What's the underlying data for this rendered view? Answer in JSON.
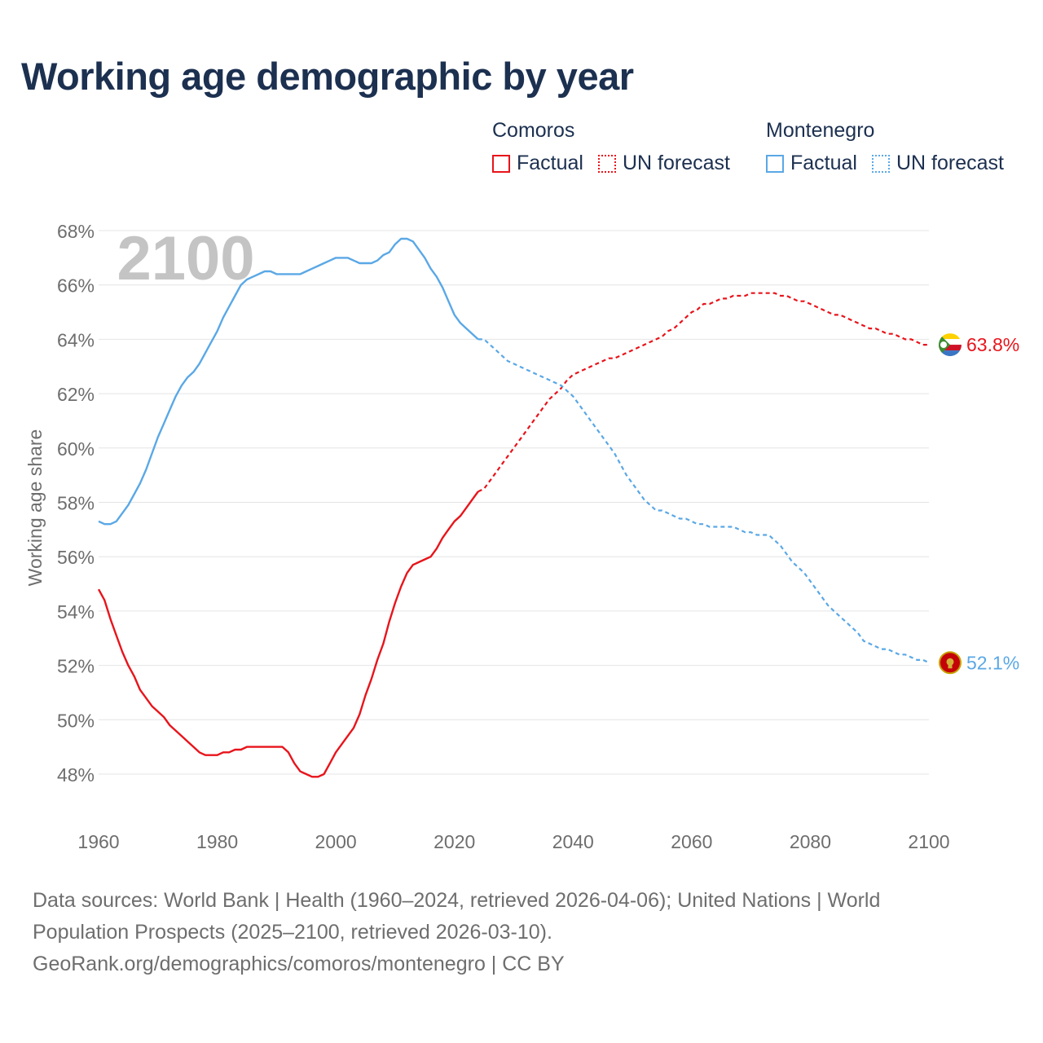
{
  "title": "Working age demographic by year",
  "legend": {
    "groups": [
      {
        "name": "Comoros",
        "color": "#e8141b",
        "factual_label": "Factual",
        "forecast_label": "UN forecast"
      },
      {
        "name": "Montenegro",
        "color": "#5aa8e6",
        "factual_label": "Factual",
        "forecast_label": "UN forecast"
      }
    ]
  },
  "footer": {
    "line1": "Data sources: World Bank | Health (1960–2024, retrieved 2026-04-06); United Nations | World",
    "line2": "Population Prospects (2025–2100, retrieved 2026-03-10).",
    "line3": "GeoRank.org/demographics/comoros/montenegro | CC BY"
  },
  "chart_data": {
    "type": "line",
    "title": "Working age demographic by year",
    "xlabel": "",
    "ylabel": "Working age share",
    "xlim": [
      1960,
      2100
    ],
    "ylim": [
      47,
      68
    ],
    "grid": true,
    "year_watermark": "2100",
    "x_ticks": [
      1960,
      1980,
      2000,
      2020,
      2040,
      2060,
      2080,
      2100
    ],
    "y_ticks": [
      48,
      50,
      52,
      54,
      56,
      58,
      60,
      62,
      64,
      66,
      68
    ],
    "y_tick_suffix": "%",
    "factual_until": 2024,
    "series": [
      {
        "name": "Comoros",
        "color": "#e8141b",
        "end_label": "63.8%",
        "flag": "comoros-flag-icon",
        "points": [
          [
            1960,
            54.8
          ],
          [
            1961,
            54.4
          ],
          [
            1962,
            53.7
          ],
          [
            1963,
            53.1
          ],
          [
            1964,
            52.5
          ],
          [
            1965,
            52.0
          ],
          [
            1966,
            51.6
          ],
          [
            1967,
            51.1
          ],
          [
            1968,
            50.8
          ],
          [
            1969,
            50.5
          ],
          [
            1970,
            50.3
          ],
          [
            1971,
            50.1
          ],
          [
            1972,
            49.8
          ],
          [
            1973,
            49.6
          ],
          [
            1974,
            49.4
          ],
          [
            1975,
            49.2
          ],
          [
            1976,
            49.0
          ],
          [
            1977,
            48.8
          ],
          [
            1978,
            48.7
          ],
          [
            1979,
            48.7
          ],
          [
            1980,
            48.7
          ],
          [
            1981,
            48.8
          ],
          [
            1982,
            48.8
          ],
          [
            1983,
            48.9
          ],
          [
            1984,
            48.9
          ],
          [
            1985,
            49.0
          ],
          [
            1986,
            49.0
          ],
          [
            1987,
            49.0
          ],
          [
            1988,
            49.0
          ],
          [
            1989,
            49.0
          ],
          [
            1990,
            49.0
          ],
          [
            1991,
            49.0
          ],
          [
            1992,
            48.8
          ],
          [
            1993,
            48.4
          ],
          [
            1994,
            48.1
          ],
          [
            1995,
            48.0
          ],
          [
            1996,
            47.9
          ],
          [
            1997,
            47.9
          ],
          [
            1998,
            48.0
          ],
          [
            1999,
            48.4
          ],
          [
            2000,
            48.8
          ],
          [
            2001,
            49.1
          ],
          [
            2002,
            49.4
          ],
          [
            2003,
            49.7
          ],
          [
            2004,
            50.2
          ],
          [
            2005,
            50.9
          ],
          [
            2006,
            51.5
          ],
          [
            2007,
            52.2
          ],
          [
            2008,
            52.8
          ],
          [
            2009,
            53.6
          ],
          [
            2010,
            54.3
          ],
          [
            2011,
            54.9
          ],
          [
            2012,
            55.4
          ],
          [
            2013,
            55.7
          ],
          [
            2014,
            55.8
          ],
          [
            2015,
            55.9
          ],
          [
            2016,
            56.0
          ],
          [
            2017,
            56.3
          ],
          [
            2018,
            56.7
          ],
          [
            2019,
            57.0
          ],
          [
            2020,
            57.3
          ],
          [
            2021,
            57.5
          ],
          [
            2022,
            57.8
          ],
          [
            2023,
            58.1
          ],
          [
            2024,
            58.4
          ],
          [
            2025,
            58.5
          ],
          [
            2026,
            58.8
          ],
          [
            2027,
            59.1
          ],
          [
            2028,
            59.4
          ],
          [
            2029,
            59.7
          ],
          [
            2030,
            60.0
          ],
          [
            2031,
            60.3
          ],
          [
            2032,
            60.6
          ],
          [
            2033,
            60.9
          ],
          [
            2034,
            61.2
          ],
          [
            2035,
            61.5
          ],
          [
            2036,
            61.8
          ],
          [
            2037,
            62.0
          ],
          [
            2038,
            62.2
          ],
          [
            2039,
            62.5
          ],
          [
            2040,
            62.7
          ],
          [
            2041,
            62.8
          ],
          [
            2042,
            62.9
          ],
          [
            2043,
            63.0
          ],
          [
            2044,
            63.1
          ],
          [
            2045,
            63.2
          ],
          [
            2046,
            63.3
          ],
          [
            2047,
            63.3
          ],
          [
            2048,
            63.4
          ],
          [
            2049,
            63.5
          ],
          [
            2050,
            63.6
          ],
          [
            2051,
            63.7
          ],
          [
            2052,
            63.8
          ],
          [
            2053,
            63.9
          ],
          [
            2054,
            64.0
          ],
          [
            2055,
            64.1
          ],
          [
            2056,
            64.3
          ],
          [
            2057,
            64.4
          ],
          [
            2058,
            64.6
          ],
          [
            2059,
            64.8
          ],
          [
            2060,
            65.0
          ],
          [
            2061,
            65.1
          ],
          [
            2062,
            65.3
          ],
          [
            2063,
            65.3
          ],
          [
            2064,
            65.4
          ],
          [
            2065,
            65.5
          ],
          [
            2066,
            65.5
          ],
          [
            2067,
            65.6
          ],
          [
            2068,
            65.6
          ],
          [
            2069,
            65.6
          ],
          [
            2070,
            65.7
          ],
          [
            2071,
            65.7
          ],
          [
            2072,
            65.7
          ],
          [
            2073,
            65.7
          ],
          [
            2074,
            65.7
          ],
          [
            2075,
            65.6
          ],
          [
            2076,
            65.6
          ],
          [
            2077,
            65.5
          ],
          [
            2078,
            65.4
          ],
          [
            2079,
            65.4
          ],
          [
            2080,
            65.3
          ],
          [
            2081,
            65.2
          ],
          [
            2082,
            65.1
          ],
          [
            2083,
            65.0
          ],
          [
            2084,
            64.9
          ],
          [
            2085,
            64.9
          ],
          [
            2086,
            64.8
          ],
          [
            2087,
            64.7
          ],
          [
            2088,
            64.6
          ],
          [
            2089,
            64.5
          ],
          [
            2090,
            64.4
          ],
          [
            2091,
            64.4
          ],
          [
            2092,
            64.3
          ],
          [
            2093,
            64.2
          ],
          [
            2094,
            64.2
          ],
          [
            2095,
            64.1
          ],
          [
            2096,
            64.0
          ],
          [
            2097,
            64.0
          ],
          [
            2098,
            63.9
          ],
          [
            2099,
            63.8
          ],
          [
            2100,
            63.8
          ]
        ]
      },
      {
        "name": "Montenegro",
        "color": "#5aa8e6",
        "end_label": "52.1%",
        "flag": "montenegro-flag-icon",
        "points": [
          [
            1960,
            57.3
          ],
          [
            1961,
            57.2
          ],
          [
            1962,
            57.2
          ],
          [
            1963,
            57.3
          ],
          [
            1964,
            57.6
          ],
          [
            1965,
            57.9
          ],
          [
            1966,
            58.3
          ],
          [
            1967,
            58.7
          ],
          [
            1968,
            59.2
          ],
          [
            1969,
            59.8
          ],
          [
            1970,
            60.4
          ],
          [
            1971,
            60.9
          ],
          [
            1972,
            61.4
          ],
          [
            1973,
            61.9
          ],
          [
            1974,
            62.3
          ],
          [
            1975,
            62.6
          ],
          [
            1976,
            62.8
          ],
          [
            1977,
            63.1
          ],
          [
            1978,
            63.5
          ],
          [
            1979,
            63.9
          ],
          [
            1980,
            64.3
          ],
          [
            1981,
            64.8
          ],
          [
            1982,
            65.2
          ],
          [
            1983,
            65.6
          ],
          [
            1984,
            66.0
          ],
          [
            1985,
            66.2
          ],
          [
            1986,
            66.3
          ],
          [
            1987,
            66.4
          ],
          [
            1988,
            66.5
          ],
          [
            1989,
            66.5
          ],
          [
            1990,
            66.4
          ],
          [
            1991,
            66.4
          ],
          [
            1992,
            66.4
          ],
          [
            1993,
            66.4
          ],
          [
            1994,
            66.4
          ],
          [
            1995,
            66.5
          ],
          [
            1996,
            66.6
          ],
          [
            1997,
            66.7
          ],
          [
            1998,
            66.8
          ],
          [
            1999,
            66.9
          ],
          [
            2000,
            67.0
          ],
          [
            2001,
            67.0
          ],
          [
            2002,
            67.0
          ],
          [
            2003,
            66.9
          ],
          [
            2004,
            66.8
          ],
          [
            2005,
            66.8
          ],
          [
            2006,
            66.8
          ],
          [
            2007,
            66.9
          ],
          [
            2008,
            67.1
          ],
          [
            2009,
            67.2
          ],
          [
            2010,
            67.5
          ],
          [
            2011,
            67.7
          ],
          [
            2012,
            67.7
          ],
          [
            2013,
            67.6
          ],
          [
            2014,
            67.3
          ],
          [
            2015,
            67.0
          ],
          [
            2016,
            66.6
          ],
          [
            2017,
            66.3
          ],
          [
            2018,
            65.9
          ],
          [
            2019,
            65.4
          ],
          [
            2020,
            64.9
          ],
          [
            2021,
            64.6
          ],
          [
            2022,
            64.4
          ],
          [
            2023,
            64.2
          ],
          [
            2024,
            64.0
          ],
          [
            2025,
            64.0
          ],
          [
            2026,
            63.8
          ],
          [
            2027,
            63.6
          ],
          [
            2028,
            63.4
          ],
          [
            2029,
            63.2
          ],
          [
            2030,
            63.1
          ],
          [
            2031,
            63.0
          ],
          [
            2032,
            62.9
          ],
          [
            2033,
            62.8
          ],
          [
            2034,
            62.7
          ],
          [
            2035,
            62.6
          ],
          [
            2036,
            62.5
          ],
          [
            2037,
            62.4
          ],
          [
            2038,
            62.3
          ],
          [
            2039,
            62.1
          ],
          [
            2040,
            61.9
          ],
          [
            2041,
            61.6
          ],
          [
            2042,
            61.3
          ],
          [
            2043,
            61.0
          ],
          [
            2044,
            60.7
          ],
          [
            2045,
            60.4
          ],
          [
            2046,
            60.1
          ],
          [
            2047,
            59.8
          ],
          [
            2048,
            59.4
          ],
          [
            2049,
            59.0
          ],
          [
            2050,
            58.7
          ],
          [
            2051,
            58.4
          ],
          [
            2052,
            58.1
          ],
          [
            2053,
            57.9
          ],
          [
            2054,
            57.7
          ],
          [
            2055,
            57.7
          ],
          [
            2056,
            57.6
          ],
          [
            2057,
            57.5
          ],
          [
            2058,
            57.4
          ],
          [
            2059,
            57.4
          ],
          [
            2060,
            57.3
          ],
          [
            2061,
            57.2
          ],
          [
            2062,
            57.2
          ],
          [
            2063,
            57.1
          ],
          [
            2064,
            57.1
          ],
          [
            2065,
            57.1
          ],
          [
            2066,
            57.1
          ],
          [
            2067,
            57.1
          ],
          [
            2068,
            57.0
          ],
          [
            2069,
            56.9
          ],
          [
            2070,
            56.9
          ],
          [
            2071,
            56.8
          ],
          [
            2072,
            56.8
          ],
          [
            2073,
            56.8
          ],
          [
            2074,
            56.6
          ],
          [
            2075,
            56.4
          ],
          [
            2076,
            56.1
          ],
          [
            2077,
            55.8
          ],
          [
            2078,
            55.6
          ],
          [
            2079,
            55.4
          ],
          [
            2080,
            55.1
          ],
          [
            2081,
            54.8
          ],
          [
            2082,
            54.5
          ],
          [
            2083,
            54.2
          ],
          [
            2084,
            54.0
          ],
          [
            2085,
            53.8
          ],
          [
            2086,
            53.6
          ],
          [
            2087,
            53.4
          ],
          [
            2088,
            53.2
          ],
          [
            2089,
            52.9
          ],
          [
            2090,
            52.8
          ],
          [
            2091,
            52.7
          ],
          [
            2092,
            52.6
          ],
          [
            2093,
            52.6
          ],
          [
            2094,
            52.5
          ],
          [
            2095,
            52.4
          ],
          [
            2096,
            52.4
          ],
          [
            2097,
            52.3
          ],
          [
            2098,
            52.2
          ],
          [
            2099,
            52.2
          ],
          [
            2100,
            52.1
          ]
        ]
      }
    ]
  }
}
